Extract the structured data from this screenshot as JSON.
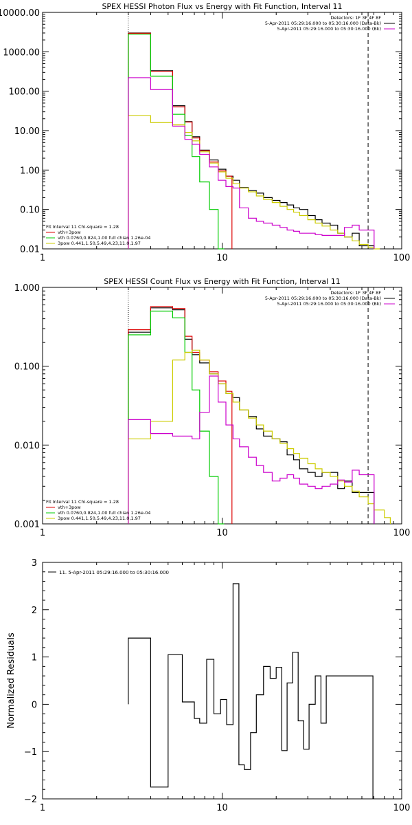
{
  "chart_data": [
    {
      "type": "line",
      "title": "SPEX HESSI Photon Flux vs Energy with Fit Function, Interval 11",
      "xlabel": "",
      "ylabel": "",
      "xscale": "log",
      "yscale": "log",
      "xlim": [
        1,
        100
      ],
      "ylim": [
        0.01,
        10000
      ],
      "xticks": [
        "1",
        "10",
        "100"
      ],
      "yticks": [
        "0.01",
        "0.10",
        "1.00",
        "10.00",
        "100.00",
        "1000.00",
        "10000.00"
      ],
      "vlines": [
        3,
        65
      ],
      "legend_top_right": [
        "Detectors: 1F 3F 4F 8F",
        "5-Apr-2011 05:29:16.000 to 05:30:16.000 (Data-Bk)",
        "5-Apr-2011 05:29:16.000 to 05:30:16.000 (Bk)"
      ],
      "legend_bottom_left": [
        "Fit Interval 11   Chi-square = 1.28",
        "vth+3pow",
        "vth 0.0760,0.824,1.00  full chian 1.26e-04",
        "3pow 0.441,1.50,5.49,4.23,11.0,1.97"
      ],
      "colors": {
        "data": "#000000",
        "total": "#dd0000",
        "vth": "#00cc00",
        "pow": "#cccc00",
        "bk": "#cc00cc"
      },
      "series": [
        {
          "name": "Data-Bk",
          "color": "#000000",
          "x": [
            3,
            3.5,
            4,
            4.5,
            5.3,
            6.2,
            6.8,
            7.5,
            8.5,
            9.5,
            10.5,
            11.5,
            12.5,
            14,
            15.5,
            17,
            19,
            21,
            23,
            25,
            27,
            30,
            33,
            36,
            40,
            44,
            48,
            53,
            58,
            65
          ],
          "y": [
            3000,
            3000,
            330,
            330,
            43,
            17,
            7.0,
            3.2,
            1.8,
            1.05,
            0.7,
            0.55,
            0.36,
            0.3,
            0.26,
            0.2,
            0.17,
            0.15,
            0.13,
            0.11,
            0.1,
            0.07,
            0.055,
            0.045,
            0.04,
            0.025,
            0.02,
            0.025,
            0.012,
            0.012
          ]
        },
        {
          "name": "vth+3pow",
          "color": "#dd0000",
          "x": [
            3,
            3.5,
            4,
            4.5,
            5.3,
            6.2,
            6.8,
            7.5,
            8.5,
            9.5,
            10.5
          ],
          "y": [
            2950,
            2950,
            320,
            320,
            40,
            16.5,
            6.5,
            3.1,
            1.6,
            0.95,
            0.7
          ]
        },
        {
          "name": "vth 0.0760,0.824,1.00",
          "color": "#00cc00",
          "x": [
            3,
            3.5,
            4,
            4.5,
            5.3,
            6.2,
            6.8,
            7.5,
            8.5,
            9.5
          ],
          "y": [
            2800,
            2800,
            240,
            240,
            26,
            7.5,
            2.2,
            0.5,
            0.1,
            0.01
          ]
        },
        {
          "name": "3pow 0.441,1.50,5.49,4.23,11.0,1.97",
          "color": "#cccc00",
          "x": [
            3,
            3.5,
            4,
            4.5,
            5.3,
            6.2,
            6.8,
            7.5,
            8.5,
            9.5,
            10.5,
            11.5,
            12.5,
            14,
            15.5,
            17,
            19,
            21,
            23,
            25,
            27,
            30,
            33,
            36,
            40,
            44,
            48,
            53,
            58,
            65,
            70
          ],
          "y": [
            24,
            24,
            16,
            16,
            14,
            9,
            5.5,
            2.9,
            1.5,
            0.9,
            0.62,
            0.45,
            0.35,
            0.28,
            0.22,
            0.18,
            0.15,
            0.12,
            0.1,
            0.085,
            0.07,
            0.055,
            0.045,
            0.038,
            0.03,
            0.025,
            0.02,
            0.016,
            0.013,
            0.011,
            0.01
          ]
        },
        {
          "name": "Bk",
          "color": "#cc00cc",
          "x": [
            3,
            3.5,
            4,
            4.5,
            5.3,
            6.2,
            6.8,
            7.5,
            8.5,
            9.5,
            10.5,
            11.5,
            12.5,
            14,
            15.5,
            17,
            19,
            21,
            23,
            25,
            27,
            30,
            33,
            36,
            40,
            44,
            48,
            53,
            58,
            65
          ],
          "y": [
            220,
            220,
            110,
            110,
            13,
            6,
            4.5,
            2.5,
            1.2,
            0.55,
            0.38,
            0.35,
            0.11,
            0.06,
            0.05,
            0.045,
            0.04,
            0.035,
            0.03,
            0.028,
            0.025,
            0.025,
            0.023,
            0.022,
            0.022,
            0.022,
            0.035,
            0.04,
            0.03,
            0.03
          ]
        }
      ]
    },
    {
      "type": "line",
      "title": "SPEX HESSI Count Flux vs Energy with Fit Function, Interval 11",
      "xlabel": "",
      "ylabel": "",
      "xscale": "log",
      "yscale": "log",
      "xlim": [
        1,
        100
      ],
      "ylim": [
        0.001,
        1
      ],
      "xticks": [
        "1",
        "10",
        "100"
      ],
      "yticks": [
        "0.001",
        "0.010",
        "0.100",
        "1.000"
      ],
      "vlines": [
        3,
        65
      ],
      "legend_top_right": [
        "Detectors: 1F 3F 4F 8F",
        "5-Apr-2011 05:29:16.000 to 05:30:16.000 (Data-Bk)",
        "5-Apr-2011 05:29:16.000 to 05:30:16.000 (Bk)"
      ],
      "legend_bottom_left": [
        "Fit Interval 11   Chi-square = 1.28",
        "vth+3pow",
        "vth 0.0760,0.824,1.00  full chian 1.26e-04",
        "3pow 0.441,1.50,5.49,4.23,11.0,1.97"
      ],
      "series": [
        {
          "name": "Data-Bk",
          "color": "#000000",
          "x": [
            3,
            3.5,
            4,
            4.5,
            5.3,
            6.2,
            6.8,
            7.5,
            8.5,
            9.5,
            10.5,
            11.5,
            12.5,
            14,
            15.5,
            17,
            19,
            21,
            23,
            25,
            27,
            30,
            33,
            36,
            40,
            44,
            48,
            53,
            58,
            65
          ],
          "y": [
            0.27,
            0.27,
            0.55,
            0.55,
            0.52,
            0.22,
            0.14,
            0.11,
            0.08,
            0.06,
            0.045,
            0.04,
            0.028,
            0.023,
            0.016,
            0.013,
            0.012,
            0.011,
            0.0075,
            0.0065,
            0.005,
            0.0045,
            0.004,
            0.0045,
            0.0045,
            0.0028,
            0.0035,
            0.0025,
            0.0025,
            0.0025
          ]
        },
        {
          "name": "vth+3pow",
          "color": "#dd0000",
          "x": [
            3,
            3.5,
            4,
            4.5,
            5.3,
            6.2,
            6.8,
            7.5,
            8.5,
            9.5,
            10.5
          ],
          "y": [
            0.29,
            0.29,
            0.57,
            0.57,
            0.54,
            0.24,
            0.15,
            0.12,
            0.085,
            0.065,
            0.048
          ]
        },
        {
          "name": "vth 0.0760,0.824,1.00",
          "color": "#00cc00",
          "x": [
            3,
            3.5,
            4,
            4.5,
            5.3,
            6.2,
            6.8,
            7.5,
            8.5,
            9.5
          ],
          "y": [
            0.25,
            0.25,
            0.5,
            0.5,
            0.41,
            0.15,
            0.05,
            0.015,
            0.004,
            0.001
          ]
        },
        {
          "name": "3pow 0.441,1.50,5.49,4.23,11.0,1.97",
          "color": "#cccc00",
          "x": [
            3,
            3.5,
            4,
            4.5,
            5.3,
            6.2,
            6.8,
            7.5,
            8.5,
            9.5,
            10.5,
            11.5,
            12.5,
            14,
            15.5,
            17,
            19,
            21,
            23,
            25,
            27,
            30,
            33,
            36,
            40,
            44,
            48,
            53,
            58,
            65,
            70,
            80
          ],
          "y": [
            0.012,
            0.012,
            0.02,
            0.02,
            0.12,
            0.15,
            0.16,
            0.12,
            0.08,
            0.06,
            0.045,
            0.035,
            0.028,
            0.022,
            0.018,
            0.015,
            0.012,
            0.0105,
            0.009,
            0.0078,
            0.0068,
            0.0058,
            0.005,
            0.0045,
            0.004,
            0.0035,
            0.003,
            0.0026,
            0.0022,
            0.0018,
            0.0015,
            0.0012
          ]
        },
        {
          "name": "Bk",
          "color": "#cc00cc",
          "x": [
            3,
            3.5,
            4,
            4.5,
            5.3,
            6.2,
            6.8,
            7.5,
            8.5,
            9.5,
            10.5,
            11.5,
            12.5,
            14,
            15.5,
            17,
            19,
            21,
            23,
            25,
            27,
            30,
            33,
            36,
            40,
            44,
            48,
            53,
            58,
            65
          ],
          "y": [
            0.021,
            0.021,
            0.014,
            0.014,
            0.013,
            0.013,
            0.012,
            0.026,
            0.075,
            0.035,
            0.018,
            0.012,
            0.0095,
            0.007,
            0.0055,
            0.0045,
            0.0035,
            0.0038,
            0.0042,
            0.0038,
            0.0032,
            0.003,
            0.0028,
            0.003,
            0.0032,
            0.0036,
            0.0034,
            0.0048,
            0.0042,
            0.0042
          ]
        }
      ]
    },
    {
      "type": "line",
      "title": "",
      "xlabel": "",
      "ylabel": "Normalized Residuals",
      "xscale": "log",
      "yscale": "linear",
      "xlim": [
        1,
        100
      ],
      "ylim": [
        -2,
        3
      ],
      "xticks": [
        "1",
        "10",
        "100"
      ],
      "yticks": [
        "−2",
        "−1",
        "0",
        "1",
        "2",
        "3"
      ],
      "legend": "11.  5-Apr-2011 05:29:16.000 to 05:30:16.000",
      "series": [
        {
          "name": "11.  5-Apr-2011 05:29:16.000 to 05:30:16.000",
          "color": "#000000",
          "x": [
            3,
            4,
            5,
            6,
            7,
            7.5,
            8.2,
            9,
            9.8,
            10.6,
            11.5,
            12.4,
            13.3,
            14.4,
            15.5,
            17,
            18.5,
            20,
            21.5,
            23,
            24.7,
            26.5,
            28.5,
            30.5,
            33,
            35.5,
            38,
            41,
            44,
            47.5,
            51,
            55,
            59,
            64
          ],
          "y": [
            1.4,
            -1.75,
            1.05,
            0.05,
            -0.3,
            -0.4,
            0.95,
            -0.2,
            0.1,
            -0.43,
            2.55,
            -1.28,
            -1.38,
            -0.6,
            0.2,
            0.8,
            0.55,
            0.78,
            -0.98,
            0.45,
            1.1,
            -0.35,
            -0.95,
            0.0,
            0.6,
            -0.4,
            0.6,
            0.6,
            0.6,
            0.6,
            0.6,
            0.6,
            0.6,
            0.6
          ]
        }
      ]
    }
  ]
}
